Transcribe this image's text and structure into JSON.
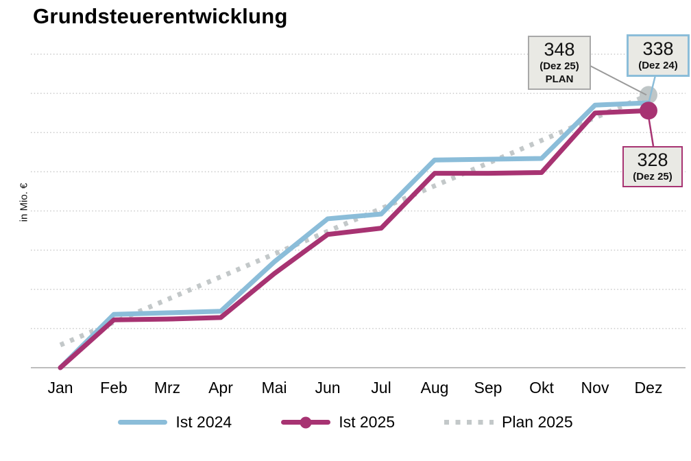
{
  "title": "Grundsteuerentwicklung",
  "chart_data": {
    "type": "line",
    "title": "Grundsteuerentwicklung",
    "xlabel": "",
    "ylabel": "in Mio. €",
    "categories": [
      "Jan",
      "Feb",
      "Mrz",
      "Apr",
      "Mai",
      "Jun",
      "Jul",
      "Aug",
      "Sep",
      "Okt",
      "Nov",
      "Dez"
    ],
    "series": [
      {
        "name": "Ist 2024",
        "style": "solid",
        "color": "#8BBDD9",
        "values": [
          0,
          68,
          70,
          72,
          135,
          190,
          196,
          265,
          266,
          267,
          335,
          338
        ]
      },
      {
        "name": "Ist 2025",
        "style": "solid",
        "color": "#A73372",
        "end_marker": true,
        "values": [
          0,
          61,
          62,
          64,
          120,
          170,
          178,
          248,
          248,
          249,
          325,
          328
        ]
      },
      {
        "name": "Plan 2025",
        "style": "dotted",
        "color": "#C3C8C9",
        "end_marker": true,
        "values": [
          29,
          58,
          87,
          116,
          145,
          174,
          203,
          232,
          261,
          290,
          319,
          348
        ]
      }
    ],
    "ylim": [
      0,
      400
    ],
    "grid_step": 50,
    "grid": "on",
    "y_tick_labels_visible": false,
    "legend_position": "bottom"
  },
  "annotations": {
    "plan_dez25": {
      "value": "348",
      "period": "(Dez 25)",
      "tag": "PLAN"
    },
    "ist2024_dez": {
      "value": "338",
      "period": "(Dez 24)"
    },
    "ist2025_dez": {
      "value": "328",
      "period": "(Dez 25)"
    }
  },
  "colors": {
    "ist2024": "#8BBDD9",
    "ist2025": "#A73372",
    "plan": "#C3C8C9",
    "plan_marker": "#BFC6C7",
    "grid": "#C9C9C9",
    "axis": "#BDBDBD",
    "annotation_bg": "#E9E9E4",
    "annotation_border_gray": "#A8A8A8",
    "leader_gray": "#9A9A9A"
  }
}
